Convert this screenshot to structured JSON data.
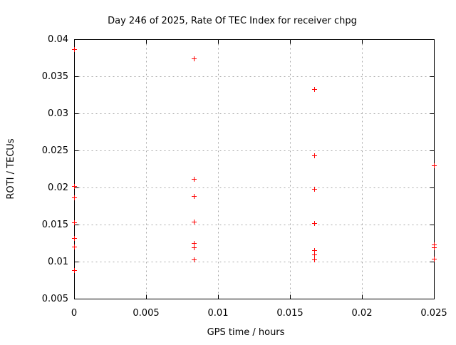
{
  "chart_data": {
    "type": "scatter",
    "title": "Day 246 of 2025, Rate Of TEC Index for receiver chpg",
    "xlabel": "GPS time / hours",
    "ylabel": "ROTI / TECUs",
    "xlim": [
      0,
      0.025
    ],
    "ylim": [
      0.005,
      0.04
    ],
    "xticks": [
      0,
      0.005,
      0.01,
      0.015,
      0.02,
      0.025
    ],
    "xtick_labels": [
      "0",
      "0.005",
      "0.01",
      "0.015",
      "0.02",
      "0.025"
    ],
    "yticks": [
      0.005,
      0.01,
      0.015,
      0.02,
      0.025,
      0.03,
      0.035,
      0.04
    ],
    "ytick_labels": [
      "0.005",
      "0.01",
      "0.015",
      "0.02",
      "0.025",
      "0.03",
      "0.035",
      "0.04"
    ],
    "grid": "dashed",
    "legend": "none",
    "marker": "plus",
    "marker_color": "#ff0000",
    "grid_color": "#a8a8a8",
    "axis_color": "#000000",
    "series": [
      {
        "name": "ROTI",
        "points": [
          [
            0,
            0.0387
          ],
          [
            0,
            0.0202
          ],
          [
            0,
            0.0187
          ],
          [
            0,
            0.0153
          ],
          [
            0,
            0.0132
          ],
          [
            0,
            0.012
          ],
          [
            0,
            0.0088
          ],
          [
            0.008333,
            0.0374
          ],
          [
            0.008333,
            0.0212
          ],
          [
            0.008333,
            0.0188
          ],
          [
            0.008333,
            0.0154
          ],
          [
            0.008333,
            0.0125
          ],
          [
            0.008333,
            0.0119
          ],
          [
            0.008333,
            0.0103
          ],
          [
            0.016667,
            0.0333
          ],
          [
            0.016667,
            0.0243
          ],
          [
            0.016667,
            0.0198
          ],
          [
            0.016667,
            0.0152
          ],
          [
            0.016667,
            0.0115
          ],
          [
            0.016667,
            0.011
          ],
          [
            0.016667,
            0.0103
          ],
          [
            0.025,
            0.023
          ],
          [
            0.025,
            0.0123
          ],
          [
            0.025,
            0.0119
          ],
          [
            0.025,
            0.0104
          ]
        ]
      }
    ]
  }
}
